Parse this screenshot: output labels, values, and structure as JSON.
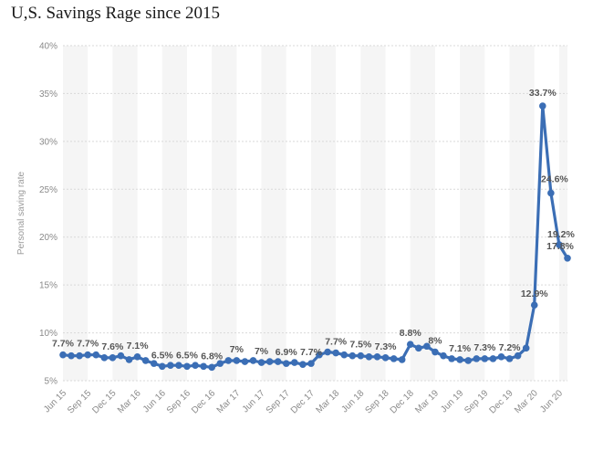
{
  "title": "U,S. Savings Rage since 2015",
  "chart_data": {
    "type": "line",
    "title": "U,S. Savings Rage since 2015",
    "xlabel": "",
    "ylabel": "Personal saving rate",
    "ylim": [
      5,
      40
    ],
    "y_ticks": [
      "5%",
      "10%",
      "15%",
      "20%",
      "25%",
      "30%",
      "35%",
      "40%"
    ],
    "x_ticks": [
      "Jun 15",
      "Sep 15",
      "Dec 15",
      "Mar 16",
      "Jun 16",
      "Sep 16",
      "Dec 16",
      "Mar 17",
      "Jun 17",
      "Sep 17",
      "Dec 17",
      "Mar 18",
      "Jun 18",
      "Sep 18",
      "Dec 18",
      "Mar 19",
      "Jun 19",
      "Sep 19",
      "Dec 19",
      "Mar 20",
      "Jun 20"
    ],
    "x_start": "Jun 15",
    "grid": true,
    "line_color": "#3b6eb5",
    "series": [
      {
        "values": [
          7.7,
          7.6,
          7.6,
          7.7,
          7.7,
          7.4,
          7.4,
          7.6,
          7.2,
          7.5,
          7.1,
          6.8,
          6.5,
          6.6,
          6.6,
          6.5,
          6.6,
          6.5,
          6.4,
          6.8,
          7.1,
          7.1,
          7.0,
          7.1,
          6.9,
          7.0,
          7.0,
          6.8,
          6.9,
          6.7,
          6.8,
          7.7,
          8.0,
          7.9,
          7.7,
          7.6,
          7.6,
          7.5,
          7.5,
          7.4,
          7.3,
          7.2,
          8.8,
          8.4,
          8.6,
          8.0,
          7.6,
          7.3,
          7.2,
          7.1,
          7.3,
          7.3,
          7.3,
          7.5,
          7.3,
          7.6,
          8.4,
          12.9,
          33.7,
          24.6,
          19.2,
          17.8
        ],
        "labels": [
          "7.7%",
          "7.7%",
          "7.6%",
          "7.1%",
          "6.5%",
          "6.5%",
          "6.8%",
          "7%",
          "7%",
          "6.9%",
          "7.7%",
          "7.7%",
          "7.5%",
          "7.3%",
          "8.8%",
          "8%",
          "7.1%",
          "7.3%",
          "7.2%",
          "12.9%",
          "33.7%",
          "24.6%",
          "19.2%",
          "17.8%"
        ]
      }
    ]
  }
}
